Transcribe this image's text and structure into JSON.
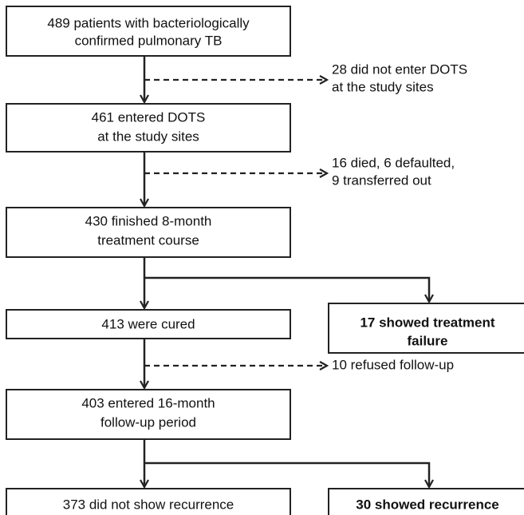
{
  "nodes": [
    {
      "lines": [
        "489 patients with bacteriologically",
        "confirmed pulmonary TB"
      ]
    },
    {
      "lines": [
        "461 entered DOTS",
        "at the study sites"
      ]
    },
    {
      "lines": [
        "430 finished 8-month",
        "treatment course"
      ]
    },
    {
      "lines": [
        "413 were cured"
      ]
    },
    {
      "lines": [
        "17 showed treatment",
        "failure"
      ]
    },
    {
      "lines": [
        "403 entered 16-month",
        "follow-up period"
      ]
    },
    {
      "lines": [
        "373 did not show recurrence"
      ]
    },
    {
      "lines": [
        "30 showed recurrence"
      ]
    }
  ],
  "exclusions": [
    {
      "lines": [
        "28 did not enter DOTS",
        "at the study sites"
      ]
    },
    {
      "lines": [
        "16 died, 6 defaulted,",
        "9 transferred out"
      ]
    },
    {
      "lines": [
        "10 refused follow-up"
      ]
    }
  ]
}
